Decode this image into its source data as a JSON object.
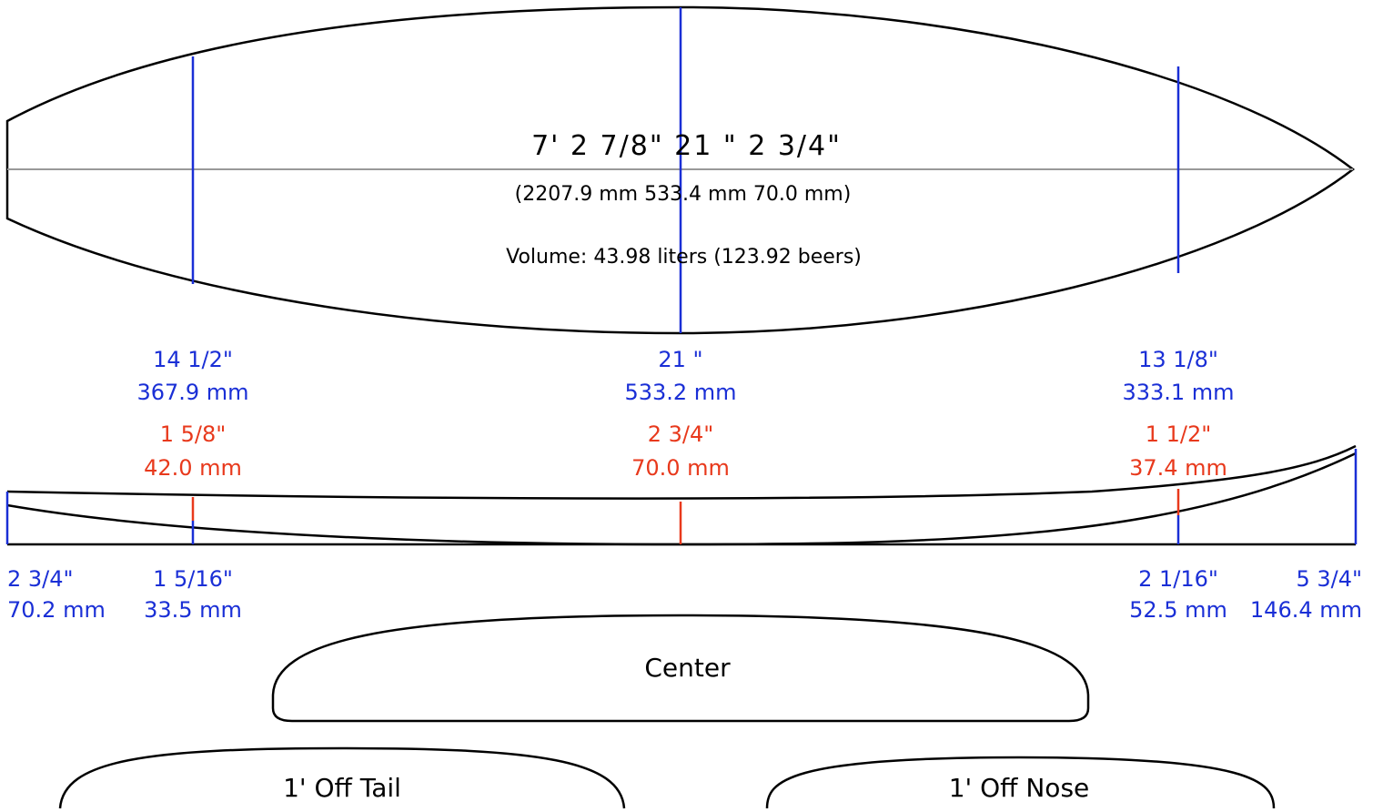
{
  "summary": {
    "dims_imperial": "7'  2 7/8\"   21 \"   2 3/4\"",
    "dims_metric": "(2207.9 mm   533.4 mm   70.0 mm)",
    "volume": "Volume: 43.98 liters (123.92 beers)"
  },
  "widths": {
    "tail_inch": "14 1/2\"",
    "tail_mm": "367.9 mm",
    "center_inch": "21 \"",
    "center_mm": "533.2 mm",
    "nose_inch": "13 1/8\"",
    "nose_mm": "333.1 mm"
  },
  "thickness": {
    "tail_inch": "1 5/8\"",
    "tail_mm": "42.0 mm",
    "center_inch": "2 3/4\"",
    "center_mm": "70.0 mm",
    "nose_inch": "1 1/2\"",
    "nose_mm": "37.4 mm"
  },
  "rocker": {
    "tail_end_inch": "2 3/4\"",
    "tail_end_mm": "70.2 mm",
    "tail_1ft_inch": "1 5/16\"",
    "tail_1ft_mm": "33.5 mm",
    "nose_1ft_inch": "2 1/16\"",
    "nose_1ft_mm": "52.5 mm",
    "nose_end_inch": "5 3/4\"",
    "nose_end_mm": "146.4 mm"
  },
  "sections": {
    "center": "Center",
    "tail": "1' Off Tail",
    "nose": "1' Off Nose"
  },
  "colors": {
    "outline": "#000000",
    "stringer": "#999999",
    "width_line": "#1a2fd6",
    "thickness_line": "#e8391c"
  }
}
